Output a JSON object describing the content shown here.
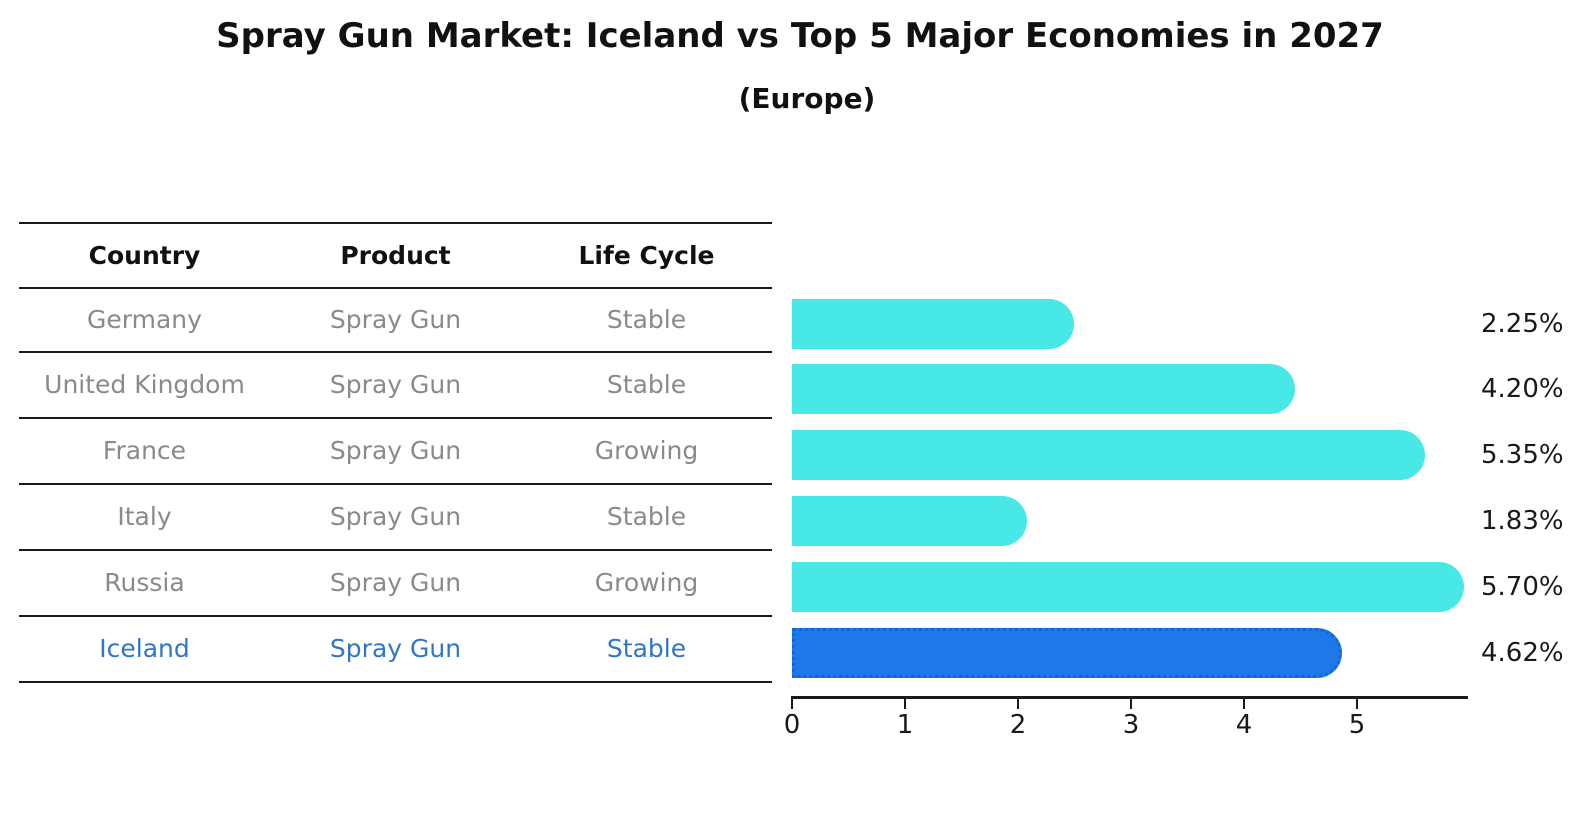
{
  "title": "Spray Gun Market: Iceland vs Top 5 Major Economies in 2027",
  "subtitle": "(Europe)",
  "table": {
    "headers": [
      "Country",
      "Product",
      "Life Cycle"
    ],
    "rows": [
      {
        "country": "Germany",
        "product": "Spray Gun",
        "life_cycle": "Stable",
        "highlighted": false
      },
      {
        "country": "United Kingdom",
        "product": "Spray Gun",
        "life_cycle": "Stable",
        "highlighted": false
      },
      {
        "country": "France",
        "product": "Spray Gun",
        "life_cycle": "Growing",
        "highlighted": false
      },
      {
        "country": "Italy",
        "product": "Spray Gun",
        "life_cycle": "Stable",
        "highlighted": false
      },
      {
        "country": "Russia",
        "product": "Spray Gun",
        "life_cycle": "Growing",
        "highlighted": false
      },
      {
        "country": "Iceland",
        "product": "Spray Gun",
        "life_cycle": "Stable",
        "highlighted": true
      }
    ]
  },
  "chart_data": {
    "type": "bar",
    "orientation": "horizontal",
    "title": "Spray Gun Market: Iceland vs Top 5 Major Economies in 2027",
    "subtitle": "(Europe)",
    "categories": [
      "Germany",
      "United Kingdom",
      "France",
      "Italy",
      "Russia",
      "Iceland"
    ],
    "values": [
      2.25,
      4.2,
      5.35,
      1.83,
      5.7,
      4.62
    ],
    "value_labels": [
      "2.25%",
      "4.20%",
      "5.35%",
      "1.83%",
      "5.70%",
      "4.62%"
    ],
    "xlabel": "",
    "ylabel": "",
    "xticks": [
      0,
      1,
      2,
      3,
      4,
      5
    ],
    "xlim": [
      0,
      5.985
    ],
    "grid": false,
    "legend": false,
    "highlight_index": 5
  },
  "colors": {
    "bar": "#48e8e6",
    "highlight_bar": "#1e78e8",
    "highlight_border": "#1464d8",
    "highlight_text": "#2f76c8",
    "table_text": "#8a8a8a",
    "header_text": "#111111",
    "line": "#1a1a1a"
  }
}
